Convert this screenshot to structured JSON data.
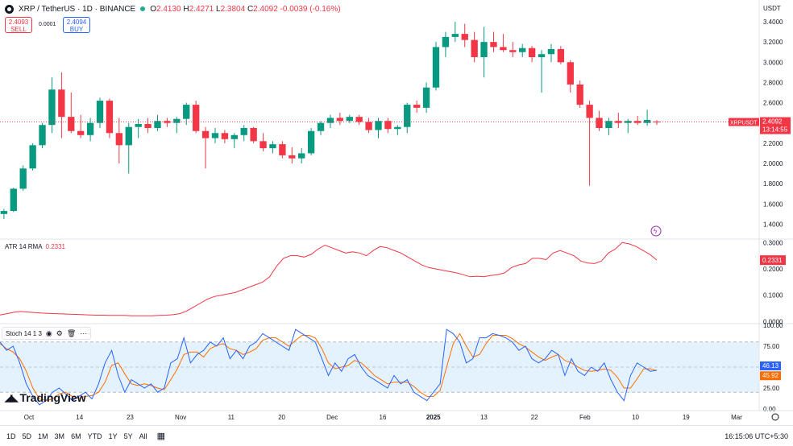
{
  "header": {
    "symbol": "XRP / TetherUS · 1D · BINANCE",
    "ohlc": {
      "o": "2.4130",
      "h": "2.4271",
      "l": "2.3804",
      "c": "2.4092",
      "chg": "-0.0039 (-0.16%)"
    },
    "labels": {
      "o": "O",
      "h": "H",
      "l": "L",
      "c": "C"
    },
    "sell_price": "2.4093",
    "sell_label": "SELL",
    "spread": "0.0001",
    "buy_price": "2.4094",
    "buy_label": "BUY"
  },
  "colors": {
    "up": "#089981",
    "down": "#f23645",
    "atr": "#f23645",
    "k_line": "#2962ff",
    "d_line": "#ff6d00",
    "band": "#e3f2fd"
  },
  "chart_data": [
    {
      "type": "candlestick",
      "name": "XRPUSDT",
      "currency_label": "USDT",
      "y_ticks": [
        "1.4000",
        "1.6000",
        "1.8000",
        "2.0000",
        "2.2000",
        "2.4000",
        "2.6000",
        "2.8000",
        "3.0000",
        "3.2000",
        "3.4000"
      ],
      "ylim": [
        1.26,
        3.44
      ],
      "last_label": "XRPUSDT",
      "last_price": "2.4092",
      "countdown": "13:14:55",
      "candles": [
        [
          1.24,
          1.26,
          1.2,
          1.22
        ],
        [
          1.22,
          1.23,
          1.18,
          1.2
        ],
        [
          1.2,
          1.24,
          1.19,
          1.23
        ],
        [
          1.23,
          1.28,
          1.22,
          1.27
        ],
        [
          1.27,
          1.3,
          1.25,
          1.28
        ],
        [
          1.28,
          1.35,
          1.27,
          1.34
        ],
        [
          1.34,
          1.5,
          1.32,
          1.47
        ],
        [
          1.47,
          1.55,
          1.35,
          1.42
        ],
        [
          1.42,
          1.52,
          1.38,
          1.48
        ],
        [
          1.48,
          1.65,
          1.33,
          1.39
        ],
        [
          1.39,
          1.48,
          1.33,
          1.45
        ],
        [
          1.45,
          1.5,
          1.38,
          1.42
        ],
        [
          1.42,
          1.55,
          1.4,
          1.5
        ],
        [
          1.5,
          1.55,
          1.45,
          1.53
        ],
        [
          1.53,
          1.76,
          1.52,
          1.75
        ],
        [
          1.75,
          1.98,
          1.73,
          1.95
        ],
        [
          1.95,
          2.2,
          1.93,
          2.18
        ],
        [
          2.18,
          2.4,
          2.15,
          2.38
        ],
        [
          2.38,
          2.85,
          2.3,
          2.73
        ],
        [
          2.73,
          2.9,
          2.25,
          2.46
        ],
        [
          2.46,
          2.7,
          2.3,
          2.32
        ],
        [
          2.32,
          2.48,
          2.25,
          2.28
        ],
        [
          2.28,
          2.45,
          2.22,
          2.4
        ],
        [
          2.4,
          2.65,
          2.35,
          2.62
        ],
        [
          2.62,
          2.64,
          2.25,
          2.3
        ],
        [
          2.3,
          2.45,
          2.0,
          2.18
        ],
        [
          2.18,
          2.4,
          1.9,
          2.36
        ],
        [
          2.36,
          2.44,
          2.25,
          2.39
        ],
        [
          2.39,
          2.45,
          2.3,
          2.35
        ],
        [
          2.35,
          2.48,
          2.32,
          2.42
        ],
        [
          2.42,
          2.45,
          2.36,
          2.4
        ],
        [
          2.4,
          2.46,
          2.3,
          2.44
        ],
        [
          2.44,
          2.6,
          2.38,
          2.58
        ],
        [
          2.58,
          2.62,
          2.3,
          2.32
        ],
        [
          2.32,
          2.36,
          1.95,
          2.25
        ],
        [
          2.25,
          2.35,
          2.2,
          2.3
        ],
        [
          2.3,
          2.33,
          2.2,
          2.24
        ],
        [
          2.24,
          2.3,
          2.15,
          2.28
        ],
        [
          2.28,
          2.38,
          2.22,
          2.35
        ],
        [
          2.35,
          2.36,
          2.2,
          2.22
        ],
        [
          2.22,
          2.3,
          2.12,
          2.15
        ],
        [
          2.15,
          2.22,
          2.1,
          2.19
        ],
        [
          2.19,
          2.22,
          2.05,
          2.08
        ],
        [
          2.08,
          2.16,
          2.0,
          2.05
        ],
        [
          2.05,
          2.15,
          2.0,
          2.1
        ],
        [
          2.1,
          2.35,
          2.08,
          2.32
        ],
        [
          2.32,
          2.42,
          2.28,
          2.4
        ],
        [
          2.4,
          2.48,
          2.35,
          2.45
        ],
        [
          2.45,
          2.5,
          2.38,
          2.42
        ],
        [
          2.42,
          2.48,
          2.4,
          2.46
        ],
        [
          2.46,
          2.48,
          2.38,
          2.41
        ],
        [
          2.41,
          2.45,
          2.3,
          2.33
        ],
        [
          2.33,
          2.45,
          2.25,
          2.42
        ],
        [
          2.42,
          2.45,
          2.3,
          2.34
        ],
        [
          2.34,
          2.38,
          2.28,
          2.36
        ],
        [
          2.36,
          2.6,
          2.3,
          2.58
        ],
        [
          2.58,
          2.62,
          2.5,
          2.55
        ],
        [
          2.55,
          2.8,
          2.5,
          2.75
        ],
        [
          2.75,
          3.2,
          2.72,
          3.15
        ],
        [
          3.15,
          3.3,
          3.05,
          3.25
        ],
        [
          3.25,
          3.4,
          3.2,
          3.28
        ],
        [
          3.28,
          3.38,
          3.15,
          3.22
        ],
        [
          3.22,
          3.3,
          3.0,
          3.05
        ],
        [
          3.05,
          3.35,
          2.85,
          3.2
        ],
        [
          3.2,
          3.3,
          3.1,
          3.15
        ],
        [
          3.15,
          3.28,
          3.1,
          3.12
        ],
        [
          3.12,
          3.2,
          3.05,
          3.1
        ],
        [
          3.1,
          3.18,
          3.05,
          3.14
        ],
        [
          3.14,
          3.16,
          3.0,
          3.05
        ],
        [
          3.05,
          3.12,
          2.7,
          3.08
        ],
        [
          3.08,
          3.18,
          3.0,
          3.13
        ],
        [
          3.13,
          3.16,
          2.98,
          3.0
        ],
        [
          3.0,
          3.02,
          2.7,
          2.78
        ],
        [
          2.78,
          2.82,
          2.55,
          2.58
        ],
        [
          2.58,
          2.62,
          1.78,
          2.45
        ],
        [
          2.45,
          2.52,
          2.32,
          2.35
        ],
        [
          2.35,
          2.45,
          2.28,
          2.42
        ],
        [
          2.42,
          2.5,
          2.35,
          2.4
        ],
        [
          2.4,
          2.44,
          2.3,
          2.42
        ],
        [
          2.42,
          2.47,
          2.38,
          2.4
        ],
        [
          2.4,
          2.53,
          2.37,
          2.43
        ],
        [
          2.413,
          2.4271,
          2.3804,
          2.4092
        ]
      ]
    },
    {
      "type": "line",
      "name": "ATR 14 RMA",
      "value_label": "0.2331",
      "y_ticks": [
        "0.0000",
        "0.1000",
        "0.2000",
        "0.3000"
      ],
      "ylim": [
        -0.005,
        0.31
      ],
      "values": [
        0.025,
        0.03,
        0.035,
        0.038,
        0.036,
        0.034,
        0.032,
        0.031,
        0.03,
        0.029,
        0.028,
        0.027,
        0.026,
        0.025,
        0.024,
        0.024,
        0.023,
        0.023,
        0.023,
        0.022,
        0.022,
        0.022,
        0.022,
        0.023,
        0.024,
        0.026,
        0.03,
        0.04,
        0.055,
        0.07,
        0.085,
        0.095,
        0.1,
        0.105,
        0.11,
        0.12,
        0.13,
        0.14,
        0.15,
        0.17,
        0.21,
        0.24,
        0.25,
        0.25,
        0.245,
        0.255,
        0.275,
        0.29,
        0.28,
        0.27,
        0.26,
        0.265,
        0.26,
        0.25,
        0.27,
        0.285,
        0.28,
        0.27,
        0.26,
        0.245,
        0.23,
        0.215,
        0.205,
        0.2,
        0.195,
        0.19,
        0.185,
        0.178,
        0.17,
        0.172,
        0.17,
        0.175,
        0.178,
        0.185,
        0.205,
        0.215,
        0.22,
        0.24,
        0.24,
        0.235,
        0.26,
        0.27,
        0.26,
        0.25,
        0.23,
        0.222,
        0.22,
        0.23,
        0.26,
        0.275,
        0.3,
        0.295,
        0.285,
        0.27,
        0.255,
        0.2331
      ]
    },
    {
      "type": "line",
      "name": "Stoch 14 1 3",
      "k_label": "46.13",
      "d_label": "45.92",
      "y_ticks": [
        "0.00",
        "25.00",
        "50.00",
        "75.00",
        "100.00"
      ],
      "ylim": [
        0,
        100
      ],
      "bands": [
        20,
        80
      ],
      "k": [
        80,
        70,
        75,
        55,
        30,
        15,
        5,
        10,
        20,
        25,
        18,
        10,
        15,
        20,
        12,
        30,
        55,
        70,
        40,
        20,
        35,
        30,
        25,
        30,
        20,
        25,
        55,
        60,
        85,
        55,
        65,
        70,
        80,
        75,
        85,
        60,
        70,
        60,
        75,
        80,
        90,
        85,
        80,
        75,
        70,
        95,
        90,
        85,
        80,
        60,
        40,
        55,
        45,
        60,
        65,
        50,
        40,
        35,
        30,
        25,
        40,
        30,
        35,
        20,
        15,
        10,
        20,
        30,
        95,
        90,
        80,
        55,
        60,
        85,
        85,
        90,
        88,
        85,
        80,
        70,
        75,
        60,
        55,
        60,
        70,
        65,
        40,
        60,
        45,
        40,
        50,
        45,
        55,
        35,
        20,
        10,
        40,
        55,
        50,
        45,
        46.13
      ],
      "d": [
        78,
        72,
        68,
        60,
        45,
        25,
        12,
        10,
        12,
        18,
        20,
        15,
        13,
        15,
        16,
        20,
        32,
        52,
        55,
        42,
        30,
        28,
        30,
        28,
        25,
        23,
        35,
        48,
        65,
        68,
        68,
        62,
        72,
        76,
        78,
        72,
        70,
        65,
        68,
        72,
        82,
        85,
        85,
        80,
        75,
        82,
        88,
        88,
        85,
        72,
        55,
        48,
        50,
        52,
        58,
        55,
        48,
        40,
        35,
        30,
        32,
        32,
        32,
        27,
        20,
        15,
        15,
        22,
        50,
        78,
        90,
        75,
        62,
        65,
        78,
        88,
        88,
        88,
        84,
        78,
        74,
        68,
        62,
        58,
        62,
        65,
        58,
        55,
        50,
        46,
        45,
        46,
        48,
        46,
        38,
        25,
        25,
        36,
        48,
        48,
        45.92
      ]
    }
  ],
  "x_axis": {
    "labels": [
      "Oct",
      "14",
      "23",
      "Nov",
      "11",
      "20",
      "Dec",
      "16",
      "2025",
      "13",
      "22",
      "Feb",
      "10",
      "19",
      "Mar"
    ]
  },
  "indicators": {
    "atr_title": "ATR 14 RMA",
    "atr_value": "0.2331",
    "stoch_title": "Stoch 14 1 3"
  },
  "bottom_bar": {
    "timeframes": [
      "1D",
      "5D",
      "1M",
      "3M",
      "6M",
      "YTD",
      "1Y",
      "5Y",
      "All"
    ],
    "clock": "16:15:06 UTC+5:30"
  },
  "brand": "TradingView"
}
